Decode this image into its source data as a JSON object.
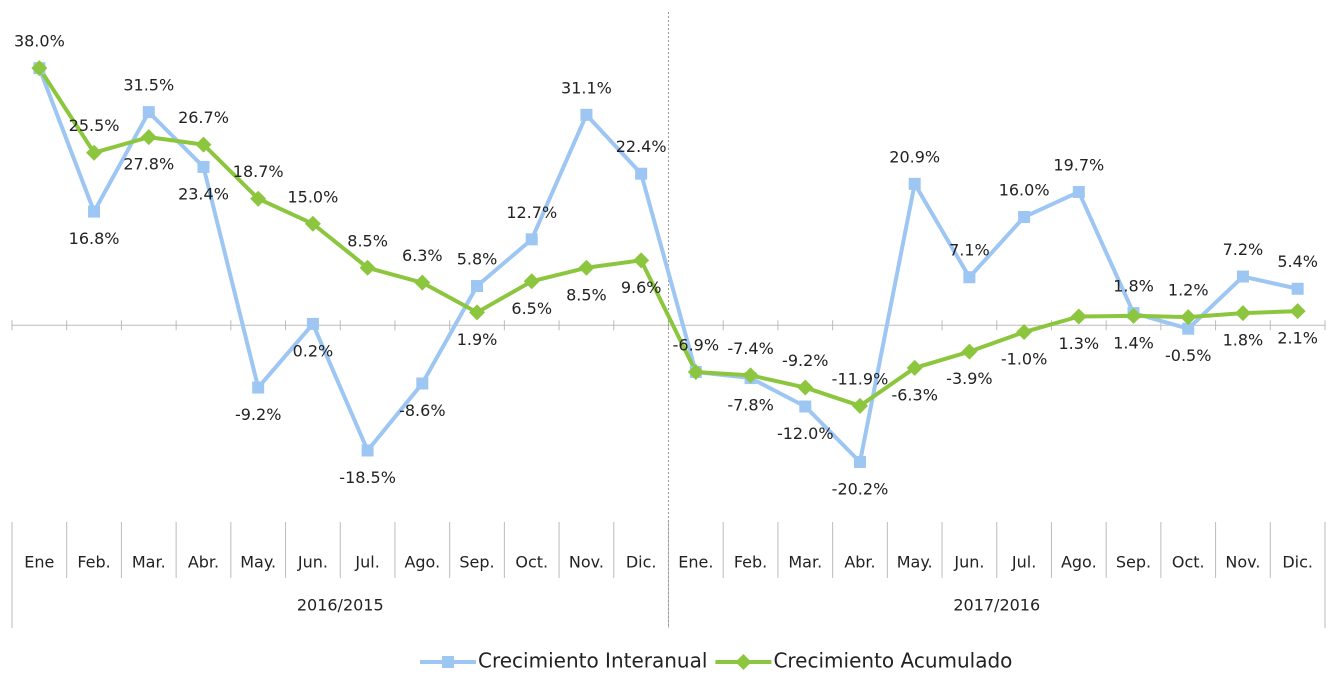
{
  "chart_data": {
    "type": "line",
    "groups": [
      {
        "name": "2016/2015",
        "categories": [
          "Ene",
          "Feb.",
          "Mar.",
          "Abr.",
          "May.",
          "Jun.",
          "Jul.",
          "Ago.",
          "Sep.",
          "Oct.",
          "Nov.",
          "Dic."
        ]
      },
      {
        "name": "2017/2016",
        "categories": [
          "Ene.",
          "Feb.",
          "Mar.",
          "Abr.",
          "May.",
          "Jun.",
          "Jul.",
          "Ago.",
          "Sep.",
          "Oct.",
          "Nov.",
          "Dic."
        ]
      }
    ],
    "series": [
      {
        "name": "Crecimiento Interanual",
        "color": "#9dc6f2",
        "marker": "square",
        "values": [
          38.0,
          16.8,
          31.5,
          23.4,
          -9.2,
          0.2,
          -18.5,
          -8.6,
          5.8,
          12.7,
          31.1,
          22.4,
          -6.9,
          -7.8,
          -12.0,
          -20.2,
          20.9,
          7.1,
          16.0,
          19.7,
          1.8,
          -0.5,
          7.2,
          5.4
        ],
        "value_labels": [
          "38.0%",
          "16.8%",
          "31.5%",
          "23.4%",
          "-9.2%",
          "0.2%",
          "-18.5%",
          "-8.6%",
          "5.8%",
          "12.7%",
          "31.1%",
          "22.4%",
          "-6.9%",
          "-7.8%",
          "-12.0%",
          "-20.2%",
          "20.9%",
          "7.1%",
          "16.0%",
          "19.7%",
          "1.8%",
          "-0.5%",
          "7.2%",
          "5.4%"
        ]
      },
      {
        "name": "Crecimiento Acumulado",
        "color": "#8cc63e",
        "marker": "diamond",
        "values": [
          38.0,
          25.5,
          27.8,
          26.7,
          18.7,
          15.0,
          8.5,
          6.3,
          1.9,
          6.5,
          8.5,
          9.6,
          -6.9,
          -7.4,
          -9.2,
          -11.9,
          -6.3,
          -3.9,
          -1.0,
          1.3,
          1.4,
          1.2,
          1.8,
          2.1
        ],
        "value_labels": [
          null,
          "25.5%",
          "27.8%",
          "26.7%",
          "18.7%",
          "15.0%",
          "8.5%",
          "6.3%",
          "1.9%",
          "6.5%",
          "8.5%",
          "9.6%",
          null,
          "-7.4%",
          "-9.2%",
          "-11.9%",
          "-6.3%",
          "-3.9%",
          "-1.0%",
          "1.3%",
          "1.4%",
          "1.2%",
          "1.8%",
          "2.1%"
        ]
      }
    ],
    "ylim": [
      -27,
      46
    ],
    "legend": "bottom"
  }
}
